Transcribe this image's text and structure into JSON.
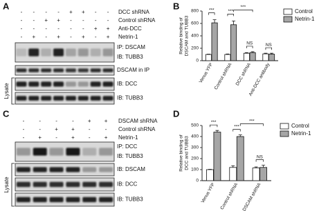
{
  "blots": [
    {
      "panel_label": "A",
      "conditions": [
        {
          "label": "DCC shRNA",
          "signs": [
            "-",
            "-",
            "-",
            "-",
            "+",
            "+",
            "-",
            "-"
          ]
        },
        {
          "label": "Control shRNA",
          "signs": [
            "-",
            "-",
            "+",
            "+",
            "-",
            "-",
            "-",
            "-"
          ]
        },
        {
          "label": "Anti-DCC",
          "signs": [
            "-",
            "-",
            "-",
            "-",
            "-",
            "-",
            "+",
            "+"
          ]
        },
        {
          "label": "Netrin-1",
          "signs": [
            "-",
            "+",
            "-",
            "+",
            "-",
            "+",
            "-",
            "+"
          ]
        }
      ],
      "rows": [
        {
          "labels": [
            "IP: DSCAM",
            "IB: TUBB3"
          ]
        },
        {
          "labels": [
            "DSCAM in IP"
          ]
        },
        {
          "labels": [
            "IB: DCC"
          ]
        },
        {
          "labels": [
            "IB: TUBB3"
          ]
        }
      ],
      "group_label": "Lysate"
    },
    {
      "panel_label": "C",
      "conditions": [
        {
          "label": "DSCAM shRNA",
          "signs": [
            "-",
            "-",
            "-",
            "-",
            "+",
            "+"
          ]
        },
        {
          "label": "Control shRNA",
          "signs": [
            "-",
            "-",
            "+",
            "+",
            "-",
            "-"
          ]
        },
        {
          "label": "Netrin-1",
          "signs": [
            "-",
            "+",
            "-",
            "+",
            "-",
            "+"
          ]
        }
      ],
      "rows": [
        {
          "labels": [
            "IP: DCC",
            "IB: TUBB3"
          ]
        },
        {
          "labels": [
            "IB: DSCAM"
          ]
        },
        {
          "labels": [
            "IB: DCC"
          ]
        },
        {
          "labels": [
            "IB: TUBB3"
          ]
        }
      ],
      "group_label": "Lysate"
    }
  ],
  "chart_data": [
    {
      "type": "bar",
      "panel_label": "B",
      "ylabel": [
        "Relative binding of",
        "DSCAM and TUBB3"
      ],
      "categories": [
        "Venus YFP",
        "Control shRNA",
        "DCC shRNA",
        "Anti-DCC antibody"
      ],
      "series": [
        {
          "name": "Control",
          "color": "#ffffff",
          "values": [
            100,
            100,
            120,
            110
          ],
          "errors": [
            5,
            8,
            10,
            10
          ]
        },
        {
          "name": "Netrin-1",
          "color": "#a6a6a6",
          "values": [
            610,
            580,
            130,
            105
          ],
          "errors": [
            50,
            60,
            15,
            15
          ]
        }
      ],
      "ylim": [
        0,
        800
      ],
      "yticks": [
        0,
        200,
        400,
        600,
        800
      ],
      "annotations": [
        "***",
        "***",
        "***",
        "NS",
        "NS"
      ],
      "legend": "upper right"
    },
    {
      "type": "bar",
      "panel_label": "D",
      "ylabel": [
        "Relative binding of",
        "DCC and TUBB3"
      ],
      "categories": [
        "Venus YFP",
        "Control shRNA",
        "DSCAM shRNA"
      ],
      "series": [
        {
          "name": "Control",
          "color": "#ffffff",
          "values": [
            100,
            120,
            115
          ],
          "errors": [
            3,
            15,
            10
          ]
        },
        {
          "name": "Netrin-1",
          "color": "#a6a6a6",
          "values": [
            440,
            400,
            120
          ],
          "errors": [
            15,
            15,
            20
          ]
        }
      ],
      "ylim": [
        0,
        500
      ],
      "yticks": [
        0,
        100,
        200,
        300,
        400,
        500
      ],
      "annotations": [
        "***",
        "***",
        "***",
        "NS"
      ],
      "legend": "upper right"
    }
  ]
}
